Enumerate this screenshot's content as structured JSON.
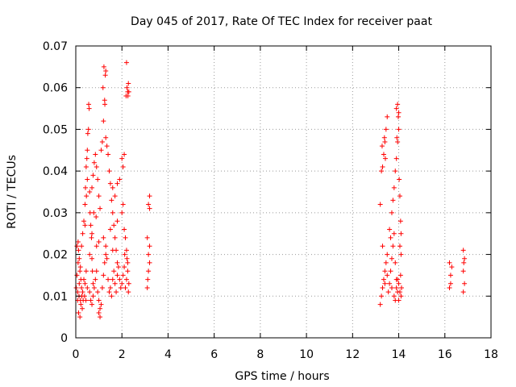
{
  "chart_data": {
    "type": "scatter",
    "title": "Day 045 of 2017, Rate Of TEC Index for receiver paat",
    "xlabel": "GPS time / hours",
    "ylabel": "ROTI / TECUs",
    "xlim": [
      0,
      18
    ],
    "ylim": [
      0,
      0.07
    ],
    "x_ticks": [
      0,
      2,
      4,
      6,
      8,
      10,
      12,
      14,
      16,
      18
    ],
    "x_tick_labels": [
      "0",
      "2",
      "4",
      "6",
      "8",
      "10",
      "12",
      "14",
      "16",
      "18"
    ],
    "y_ticks": [
      0,
      0.01,
      0.02,
      0.03,
      0.04,
      0.05,
      0.06,
      0.07
    ],
    "y_tick_labels": [
      "0",
      "0.01",
      "0.02",
      "0.03",
      "0.04",
      "0.05",
      "0.06",
      "0.07"
    ],
    "grid": true,
    "marker": "+",
    "color": "#ff0000",
    "series": [
      {
        "name": "ROTI",
        "points": [
          [
            0.02,
            0.012
          ],
          [
            0.05,
            0.015
          ],
          [
            0.08,
            0.011
          ],
          [
            0.1,
            0.018
          ],
          [
            0.12,
            0.021
          ],
          [
            0.15,
            0.013
          ],
          [
            0.18,
            0.016
          ],
          [
            0.2,
            0.009
          ],
          [
            0.22,
            0.014
          ],
          [
            0.25,
            0.012
          ],
          [
            0.05,
            0.022
          ],
          [
            0.1,
            0.023
          ],
          [
            0.15,
            0.019
          ],
          [
            0.2,
            0.017
          ],
          [
            0.25,
            0.022
          ],
          [
            0.3,
            0.011
          ],
          [
            0.35,
            0.014
          ],
          [
            0.4,
            0.013
          ],
          [
            0.45,
            0.016
          ],
          [
            0.5,
            0.012
          ],
          [
            0.12,
            0.006
          ],
          [
            0.18,
            0.005
          ],
          [
            0.22,
            0.008
          ],
          [
            0.28,
            0.007
          ],
          [
            0.32,
            0.009
          ],
          [
            0.08,
            0.009
          ],
          [
            0.14,
            0.01
          ],
          [
            0.26,
            0.01
          ],
          [
            0.38,
            0.01
          ],
          [
            0.44,
            0.009
          ],
          [
            0.3,
            0.025
          ],
          [
            0.35,
            0.028
          ],
          [
            0.4,
            0.032
          ],
          [
            0.42,
            0.036
          ],
          [
            0.45,
            0.041
          ],
          [
            0.48,
            0.043
          ],
          [
            0.5,
            0.045
          ],
          [
            0.52,
            0.049
          ],
          [
            0.55,
            0.05
          ],
          [
            0.58,
            0.055
          ],
          [
            0.56,
            0.056
          ],
          [
            0.5,
            0.038
          ],
          [
            0.46,
            0.034
          ],
          [
            0.6,
            0.035
          ],
          [
            0.62,
            0.03
          ],
          [
            0.65,
            0.027
          ],
          [
            0.68,
            0.024
          ],
          [
            0.7,
            0.019
          ],
          [
            0.72,
            0.016
          ],
          [
            0.75,
            0.013
          ],
          [
            0.6,
            0.011
          ],
          [
            0.65,
            0.009
          ],
          [
            0.7,
            0.008
          ],
          [
            0.75,
            0.01
          ],
          [
            0.8,
            0.012
          ],
          [
            0.85,
            0.014
          ],
          [
            0.9,
            0.016
          ],
          [
            0.95,
            0.011
          ],
          [
            1.0,
            0.009
          ],
          [
            1.05,
            0.007
          ],
          [
            0.7,
            0.036
          ],
          [
            0.75,
            0.039
          ],
          [
            0.8,
            0.042
          ],
          [
            0.85,
            0.044
          ],
          [
            0.9,
            0.041
          ],
          [
            0.95,
            0.038
          ],
          [
            1.0,
            0.034
          ],
          [
            1.05,
            0.031
          ],
          [
            0.78,
            0.03
          ],
          [
            0.88,
            0.029
          ],
          [
            1.0,
            0.006
          ],
          [
            1.05,
            0.005
          ],
          [
            1.1,
            0.008
          ],
          [
            1.15,
            0.012
          ],
          [
            1.2,
            0.015
          ],
          [
            1.25,
            0.018
          ],
          [
            1.3,
            0.022
          ],
          [
            1.35,
            0.019
          ],
          [
            1.4,
            0.014
          ],
          [
            1.45,
            0.011
          ],
          [
            1.1,
            0.045
          ],
          [
            1.15,
            0.047
          ],
          [
            1.2,
            0.052
          ],
          [
            1.25,
            0.057
          ],
          [
            1.3,
            0.064
          ],
          [
            1.22,
            0.065
          ],
          [
            1.28,
            0.063
          ],
          [
            1.18,
            0.06
          ],
          [
            1.26,
            0.056
          ],
          [
            1.3,
            0.048
          ],
          [
            1.35,
            0.046
          ],
          [
            1.4,
            0.044
          ],
          [
            1.45,
            0.04
          ],
          [
            1.5,
            0.037
          ],
          [
            1.55,
            0.033
          ],
          [
            1.6,
            0.03
          ],
          [
            1.65,
            0.027
          ],
          [
            1.7,
            0.024
          ],
          [
            1.75,
            0.021
          ],
          [
            1.8,
            0.018
          ],
          [
            1.5,
            0.012
          ],
          [
            1.55,
            0.01
          ],
          [
            1.6,
            0.014
          ],
          [
            1.65,
            0.016
          ],
          [
            1.7,
            0.013
          ],
          [
            1.75,
            0.011
          ],
          [
            1.8,
            0.015
          ],
          [
            1.85,
            0.017
          ],
          [
            1.9,
            0.014
          ],
          [
            1.95,
            0.012
          ],
          [
            1.6,
            0.036
          ],
          [
            1.7,
            0.034
          ],
          [
            1.8,
            0.037
          ],
          [
            1.9,
            0.038
          ],
          [
            2.0,
            0.03
          ],
          [
            2.05,
            0.032
          ],
          [
            2.1,
            0.026
          ],
          [
            2.15,
            0.024
          ],
          [
            2.2,
            0.021
          ],
          [
            2.25,
            0.018
          ],
          [
            2.0,
            0.043
          ],
          [
            2.05,
            0.041
          ],
          [
            2.1,
            0.044
          ],
          [
            2.2,
            0.066
          ],
          [
            2.22,
            0.06
          ],
          [
            2.25,
            0.059
          ],
          [
            2.28,
            0.061
          ],
          [
            2.3,
            0.059
          ],
          [
            2.18,
            0.058
          ],
          [
            2.26,
            0.058
          ],
          [
            2.0,
            0.013
          ],
          [
            2.05,
            0.015
          ],
          [
            2.1,
            0.017
          ],
          [
            2.15,
            0.012
          ],
          [
            2.2,
            0.014
          ],
          [
            2.25,
            0.016
          ],
          [
            2.3,
            0.013
          ],
          [
            2.28,
            0.011
          ],
          [
            2.22,
            0.019
          ],
          [
            2.12,
            0.02
          ],
          [
            0.6,
            0.02
          ],
          [
            0.9,
            0.022
          ],
          [
            1.2,
            0.024
          ],
          [
            1.5,
            0.026
          ],
          [
            1.8,
            0.028
          ],
          [
            0.4,
            0.027
          ],
          [
            0.7,
            0.025
          ],
          [
            1.0,
            0.023
          ],
          [
            1.3,
            0.02
          ],
          [
            1.6,
            0.021
          ],
          [
            3.1,
            0.012
          ],
          [
            3.15,
            0.016
          ],
          [
            3.2,
            0.018
          ],
          [
            3.15,
            0.02
          ],
          [
            3.2,
            0.022
          ],
          [
            3.1,
            0.024
          ],
          [
            3.2,
            0.031
          ],
          [
            3.15,
            0.032
          ],
          [
            3.2,
            0.034
          ],
          [
            3.12,
            0.014
          ],
          [
            13.2,
            0.008
          ],
          [
            13.25,
            0.01
          ],
          [
            13.3,
            0.012
          ],
          [
            13.35,
            0.014
          ],
          [
            13.4,
            0.016
          ],
          [
            13.45,
            0.018
          ],
          [
            13.5,
            0.02
          ],
          [
            13.3,
            0.022
          ],
          [
            13.4,
            0.013
          ],
          [
            13.5,
            0.015
          ],
          [
            13.2,
            0.032
          ],
          [
            13.25,
            0.04
          ],
          [
            13.3,
            0.041
          ],
          [
            13.35,
            0.044
          ],
          [
            13.4,
            0.047
          ],
          [
            13.45,
            0.05
          ],
          [
            13.5,
            0.053
          ],
          [
            13.38,
            0.048
          ],
          [
            13.28,
            0.046
          ],
          [
            13.42,
            0.043
          ],
          [
            13.55,
            0.011
          ],
          [
            13.6,
            0.013
          ],
          [
            13.65,
            0.016
          ],
          [
            13.7,
            0.019
          ],
          [
            13.75,
            0.022
          ],
          [
            13.8,
            0.025
          ],
          [
            13.85,
            0.018
          ],
          [
            13.9,
            0.014
          ],
          [
            13.95,
            0.011
          ],
          [
            14.0,
            0.009
          ],
          [
            13.6,
            0.026
          ],
          [
            13.65,
            0.024
          ],
          [
            13.7,
            0.03
          ],
          [
            13.75,
            0.033
          ],
          [
            13.8,
            0.036
          ],
          [
            13.85,
            0.04
          ],
          [
            13.9,
            0.043
          ],
          [
            13.95,
            0.047
          ],
          [
            14.0,
            0.05
          ],
          [
            13.98,
            0.053
          ],
          [
            13.9,
            0.055
          ],
          [
            13.95,
            0.056
          ],
          [
            14.0,
            0.054
          ],
          [
            13.92,
            0.048
          ],
          [
            14.02,
            0.038
          ],
          [
            14.05,
            0.034
          ],
          [
            14.08,
            0.028
          ],
          [
            14.1,
            0.025
          ],
          [
            14.05,
            0.022
          ],
          [
            14.1,
            0.02
          ],
          [
            13.8,
            0.01
          ],
          [
            13.85,
            0.009
          ],
          [
            13.9,
            0.012
          ],
          [
            13.95,
            0.014
          ],
          [
            14.0,
            0.013
          ],
          [
            14.05,
            0.011
          ],
          [
            14.1,
            0.01
          ],
          [
            14.12,
            0.012
          ],
          [
            14.08,
            0.015
          ],
          [
            13.7,
            0.012
          ],
          [
            16.2,
            0.012
          ],
          [
            16.25,
            0.015
          ],
          [
            16.3,
            0.017
          ],
          [
            16.2,
            0.018
          ],
          [
            16.25,
            0.013
          ],
          [
            16.8,
            0.011
          ],
          [
            16.85,
            0.013
          ],
          [
            16.8,
            0.016
          ],
          [
            16.85,
            0.019
          ],
          [
            16.8,
            0.021
          ],
          [
            16.82,
            0.018
          ]
        ]
      }
    ]
  }
}
